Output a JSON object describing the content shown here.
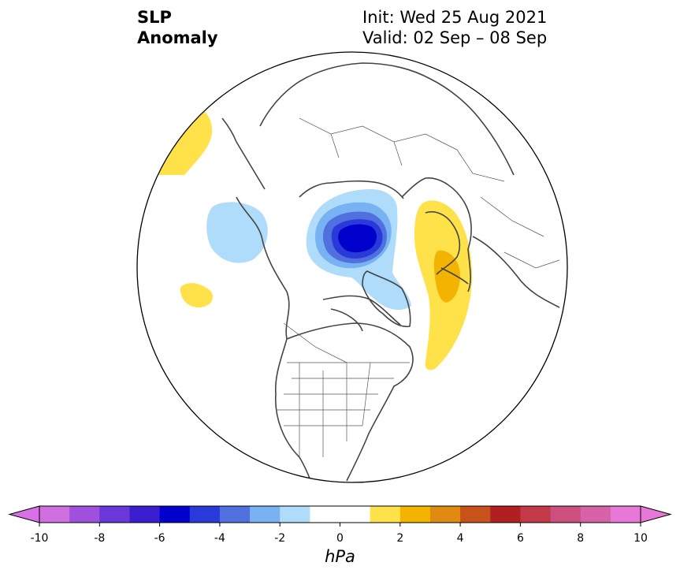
{
  "title": {
    "line1": "SLP",
    "line2": "Anomaly",
    "init": "Init: Wed 25 Aug 2021",
    "valid": "Valid: 02 Sep – 08 Sep"
  },
  "colorbar": {
    "unit": "hPa",
    "min": -10,
    "max": 10,
    "step": 1,
    "ticks": [
      "-10",
      "-8",
      "-6",
      "-4",
      "-2",
      "0",
      "2",
      "4",
      "6",
      "8",
      "10"
    ],
    "colors": [
      "#d070e0",
      "#a050dd",
      "#6a38d8",
      "#3b1ed0",
      "#0000cc",
      "#2a3ad8",
      "#5070e0",
      "#78b2f2",
      "#aedcfa",
      "#ffffff",
      "#ffffff",
      "#ffe24a",
      "#f2b400",
      "#e08a12",
      "#c7521a",
      "#b02020",
      "#c23a48",
      "#cc4f7e",
      "#d862a8",
      "#e878d8"
    ],
    "under_color": "#d870e8",
    "over_color": "#e878d8"
  },
  "map": {
    "projection": "north-polar-stereographic",
    "coastline_color": "#444444",
    "anomaly_regions": [
      {
        "name": "negative-core-arctic",
        "level": -6
      },
      {
        "name": "negative-arctic-ring",
        "level": -2
      },
      {
        "name": "negative-pacific",
        "level": -2
      },
      {
        "name": "positive-siberia-europe",
        "level": 2
      },
      {
        "name": "positive-siberia-core",
        "level": 3
      },
      {
        "name": "positive-bering",
        "level": 1
      },
      {
        "name": "positive-pacific-small",
        "level": 1
      }
    ]
  }
}
